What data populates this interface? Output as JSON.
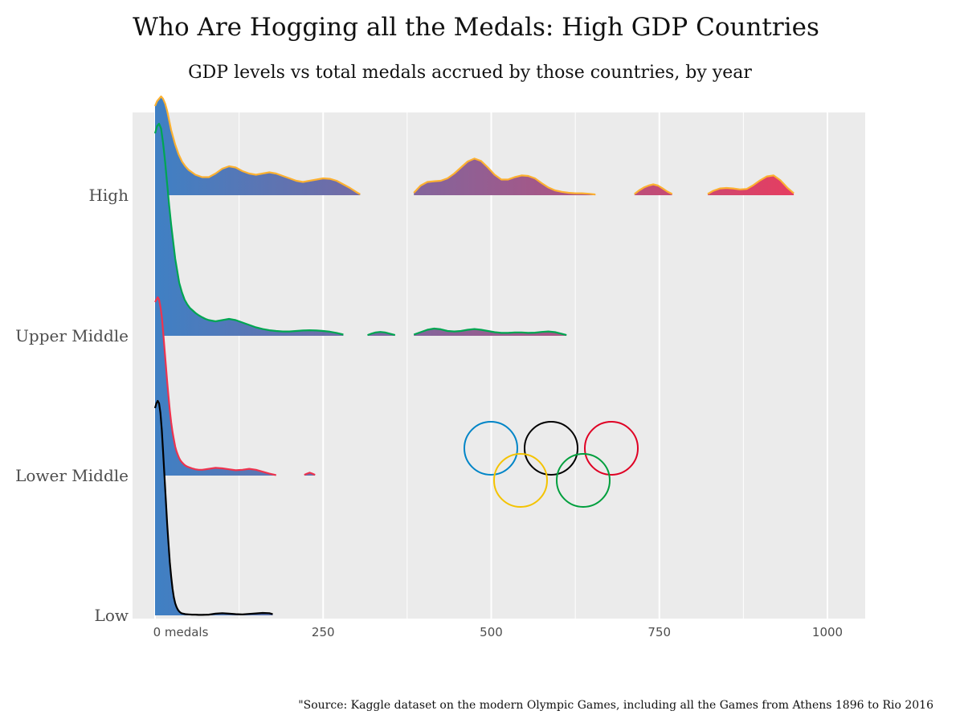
{
  "chart_data": {
    "type": "area",
    "subtype": "ridgeline",
    "title": "Who Are Hogging all the Medals: High GDP Countries",
    "subtitle": "GDP levels vs total medals accrued by those countries, by year",
    "caption": "\"Source: Kaggle dataset on the modern Olympic Games, including all the Games from Athens 1896 to Rio 2016",
    "xlim": [
      -70,
      1060
    ],
    "x_ticks": [
      {
        "value": 0,
        "label": "0 medals"
      },
      {
        "value": 250,
        "label": "250"
      },
      {
        "value": 500,
        "label": "500"
      },
      {
        "value": 750,
        "label": "750"
      },
      {
        "value": 1000,
        "label": "1000"
      }
    ],
    "grid": true,
    "fill_gradient": [
      "#3f80c4",
      "#ee3a5c"
    ],
    "series": [
      {
        "name": "Low",
        "line_color": "#000000",
        "segments": [
          {
            "x": [
              0,
              2,
              4,
              6,
              8,
              10,
              12,
              14,
              16,
              18,
              20,
              22,
              24,
              26,
              28,
              30,
              32,
              34,
              36,
              38,
              40,
              45,
              50,
              55,
              60,
              65,
              70,
              80,
              90,
              100,
              110,
              120,
              130,
              140,
              150,
              160,
              170,
              175
            ],
            "y": [
              0.86,
              0.88,
              0.89,
              0.88,
              0.84,
              0.77,
              0.68,
              0.58,
              0.48,
              0.38,
              0.3,
              0.22,
              0.16,
              0.11,
              0.075,
              0.05,
              0.034,
              0.023,
              0.016,
              0.011,
              0.008,
              0.005,
              0.004,
              0.003,
              0.003,
              0.002,
              0.002,
              0.003,
              0.007,
              0.009,
              0.007,
              0.005,
              0.004,
              0.006,
              0.008,
              0.01,
              0.009,
              0.005
            ]
          }
        ]
      },
      {
        "name": "Lower Middle",
        "line_color": "#ee334e",
        "segments": [
          {
            "x": [
              0,
              2,
              4,
              6,
              8,
              10,
              12,
              14,
              16,
              18,
              20,
              22,
              24,
              26,
              28,
              30,
              32,
              34,
              36,
              38,
              40,
              42,
              44,
              46,
              48,
              50,
              55,
              60,
              65,
              70,
              80,
              90,
              100,
              110,
              120,
              130,
              140,
              150,
              160,
              170,
              180
            ],
            "y": [
              0.72,
              0.73,
              0.74,
              0.73,
              0.7,
              0.66,
              0.6,
              0.53,
              0.46,
              0.39,
              0.33,
              0.27,
              0.22,
              0.18,
              0.15,
              0.12,
              0.1,
              0.085,
              0.072,
              0.062,
              0.055,
              0.049,
              0.044,
              0.04,
              0.037,
              0.035,
              0.03,
              0.026,
              0.024,
              0.024,
              0.028,
              0.032,
              0.03,
              0.026,
              0.022,
              0.024,
              0.028,
              0.024,
              0.016,
              0.008,
              0.002
            ]
          },
          {
            "x": [
              222,
              226,
              230,
              234,
              238
            ],
            "y": [
              0.003,
              0.008,
              0.012,
              0.008,
              0.003
            ]
          }
        ]
      },
      {
        "name": "Upper Middle",
        "line_color": "#00a651",
        "segments": [
          {
            "x": [
              0,
              3,
              6,
              9,
              12,
              15,
              18,
              21,
              24,
              27,
              30,
              33,
              36,
              40,
              44,
              48,
              52,
              56,
              60,
              65,
              70,
              75,
              80,
              90,
              100,
              110,
              120,
              130,
              140,
              150,
              160,
              170,
              180,
              190,
              200,
              210,
              220,
              230,
              240,
              250,
              260,
              270,
              280
            ],
            "y": [
              0.84,
              0.87,
              0.88,
              0.86,
              0.8,
              0.72,
              0.63,
              0.54,
              0.46,
              0.39,
              0.32,
              0.27,
              0.22,
              0.18,
              0.15,
              0.13,
              0.115,
              0.105,
              0.095,
              0.085,
              0.077,
              0.07,
              0.065,
              0.06,
              0.065,
              0.07,
              0.065,
              0.055,
              0.045,
              0.035,
              0.028,
              0.023,
              0.02,
              0.018,
              0.018,
              0.02,
              0.022,
              0.023,
              0.022,
              0.02,
              0.017,
              0.012,
              0.005
            ]
          },
          {
            "x": [
              316,
              322,
              328,
              335,
              342,
              350,
              357
            ],
            "y": [
              0.003,
              0.009,
              0.014,
              0.016,
              0.014,
              0.008,
              0.003
            ]
          },
          {
            "x": [
              385,
              395,
              405,
              415,
              425,
              435,
              445,
              455,
              465,
              475,
              485,
              495,
              505,
              515,
              525,
              535,
              545,
              555,
              565,
              575,
              585,
              595,
              605,
              612
            ],
            "y": [
              0.005,
              0.015,
              0.025,
              0.03,
              0.027,
              0.02,
              0.018,
              0.02,
              0.025,
              0.028,
              0.025,
              0.02,
              0.015,
              0.012,
              0.012,
              0.014,
              0.014,
              0.012,
              0.013,
              0.016,
              0.018,
              0.015,
              0.008,
              0.003
            ]
          }
        ]
      },
      {
        "name": "High",
        "line_color": "#fcb131",
        "segments": [
          {
            "x": [
              0,
              3,
              6,
              9,
              12,
              15,
              18,
              21,
              24,
              27,
              30,
              35,
              40,
              45,
              50,
              55,
              60,
              70,
              80,
              90,
              100,
              110,
              120,
              130,
              140,
              150,
              160,
              170,
              180,
              190,
              200,
              210,
              220,
              230,
              240,
              250,
              260,
              270,
              280,
              290,
              300,
              305
            ],
            "y": [
              0.37,
              0.39,
              0.4,
              0.41,
              0.4,
              0.38,
              0.35,
              0.31,
              0.27,
              0.24,
              0.21,
              0.17,
              0.14,
              0.12,
              0.105,
              0.095,
              0.085,
              0.075,
              0.075,
              0.09,
              0.11,
              0.12,
              0.115,
              0.1,
              0.09,
              0.085,
              0.09,
              0.095,
              0.09,
              0.08,
              0.07,
              0.06,
              0.055,
              0.06,
              0.065,
              0.07,
              0.068,
              0.06,
              0.045,
              0.03,
              0.012,
              0.004
            ]
          },
          {
            "x": [
              385,
              395,
              405,
              415,
              425,
              435,
              445,
              455,
              465,
              475,
              485,
              495,
              505,
              515,
              525,
              535,
              545,
              555,
              565,
              575,
              585,
              595,
              605,
              615,
              625,
              635,
              645,
              655
            ],
            "y": [
              0.01,
              0.04,
              0.055,
              0.058,
              0.06,
              0.07,
              0.09,
              0.115,
              0.14,
              0.152,
              0.142,
              0.115,
              0.085,
              0.065,
              0.065,
              0.075,
              0.082,
              0.08,
              0.07,
              0.05,
              0.032,
              0.02,
              0.014,
              0.01,
              0.008,
              0.008,
              0.006,
              0.003
            ]
          },
          {
            "x": [
              713,
              720,
              727,
              734,
              741,
              748,
              755,
              762,
              769
            ],
            "y": [
              0.005,
              0.02,
              0.032,
              0.04,
              0.045,
              0.04,
              0.028,
              0.015,
              0.005
            ]
          },
          {
            "x": [
              822,
              830,
              840,
              850,
              860,
              870,
              880,
              890,
              900,
              910,
              920,
              930,
              940,
              950
            ],
            "y": [
              0.005,
              0.018,
              0.028,
              0.03,
              0.028,
              0.024,
              0.026,
              0.042,
              0.062,
              0.078,
              0.082,
              0.062,
              0.032,
              0.008
            ]
          }
        ]
      }
    ]
  },
  "logo": {
    "rings": [
      {
        "color": "#0085c7"
      },
      {
        "color": "#000000"
      },
      {
        "color": "#df0024"
      },
      {
        "color": "#f4c300"
      },
      {
        "color": "#009f3d"
      }
    ]
  }
}
